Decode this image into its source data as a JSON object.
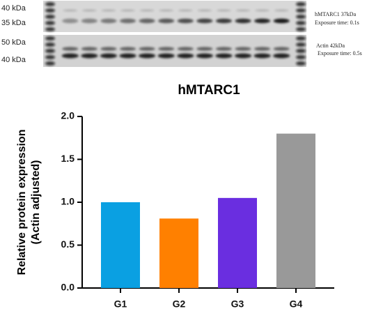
{
  "blot": {
    "top_markers": [
      "40 kDa",
      "35 kDa"
    ],
    "bottom_markers": [
      "50 kDa",
      "40 kDa"
    ],
    "top_notes": [
      "hMTARC1 37kDa",
      "Exposure time: 0.1s"
    ],
    "bottom_notes": [
      "Actin 42kDa",
      "Exposure time: 0.5s"
    ]
  },
  "chart_data": {
    "type": "bar",
    "title": "hMTARC1",
    "ylabel": [
      "Relative protein expression",
      "(Actin adjusted)"
    ],
    "categories": [
      "G1",
      "G2",
      "G3",
      "G4"
    ],
    "values": [
      1.0,
      0.81,
      1.05,
      1.8
    ],
    "colors": [
      "#0aa0e2",
      "#ff8000",
      "#6a2ee0",
      "#999999"
    ],
    "ylim": [
      0,
      2.0
    ],
    "yticks": [
      {
        "value": 0,
        "label": "0.0"
      },
      {
        "value": 0.5,
        "label": "0.5"
      },
      {
        "value": 1.0,
        "label": "1.0"
      },
      {
        "value": 1.5,
        "label": "1.5"
      },
      {
        "value": 2.0,
        "label": "2.0"
      }
    ],
    "grid": false
  }
}
